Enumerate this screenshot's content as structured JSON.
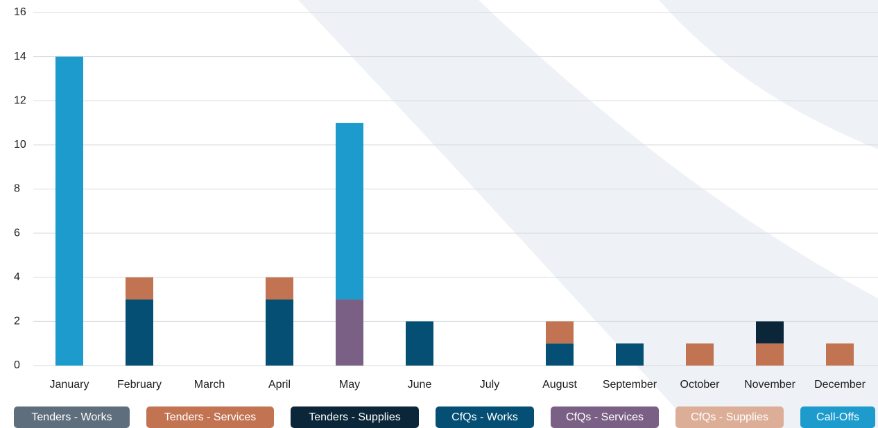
{
  "chart_data": {
    "type": "stacked-bar",
    "categories": [
      "January",
      "February",
      "March",
      "April",
      "May",
      "June",
      "July",
      "August",
      "September",
      "October",
      "November",
      "December"
    ],
    "series": [
      {
        "name": "Tenders - Works",
        "color": "#5e6e7c",
        "values": [
          0,
          0,
          0,
          0,
          0,
          0,
          0,
          0,
          0,
          0,
          0,
          0
        ]
      },
      {
        "name": "Tenders - Services",
        "color": "#c27452",
        "values": [
          0,
          1,
          0,
          1,
          0,
          0,
          0,
          1,
          0,
          1,
          1,
          1
        ]
      },
      {
        "name": "Tenders - Supplies",
        "color": "#0a2638",
        "values": [
          0,
          0,
          0,
          0,
          0,
          0,
          0,
          0,
          0,
          0,
          1,
          0
        ]
      },
      {
        "name": "CfQs - Works",
        "color": "#054f74",
        "values": [
          0,
          3,
          0,
          3,
          0,
          2,
          0,
          1,
          1,
          0,
          0,
          0
        ]
      },
      {
        "name": "CfQs - Services",
        "color": "#7b6086",
        "values": [
          0,
          0,
          0,
          0,
          3,
          0,
          0,
          0,
          0,
          0,
          0,
          0
        ]
      },
      {
        "name": "CfQs - Supplies",
        "color": "#ddae97",
        "values": [
          0,
          0,
          0,
          0,
          0,
          0,
          0,
          0,
          0,
          0,
          0,
          0
        ]
      },
      {
        "name": "Call-Offs",
        "color": "#1c9bcc",
        "values": [
          14,
          0,
          0,
          0,
          8,
          0,
          0,
          0,
          0,
          0,
          0,
          0
        ]
      }
    ],
    "ylim": [
      0,
      16
    ],
    "yticks": [
      0,
      2,
      4,
      6,
      8,
      10,
      12,
      14,
      16
    ],
    "grid": true
  }
}
